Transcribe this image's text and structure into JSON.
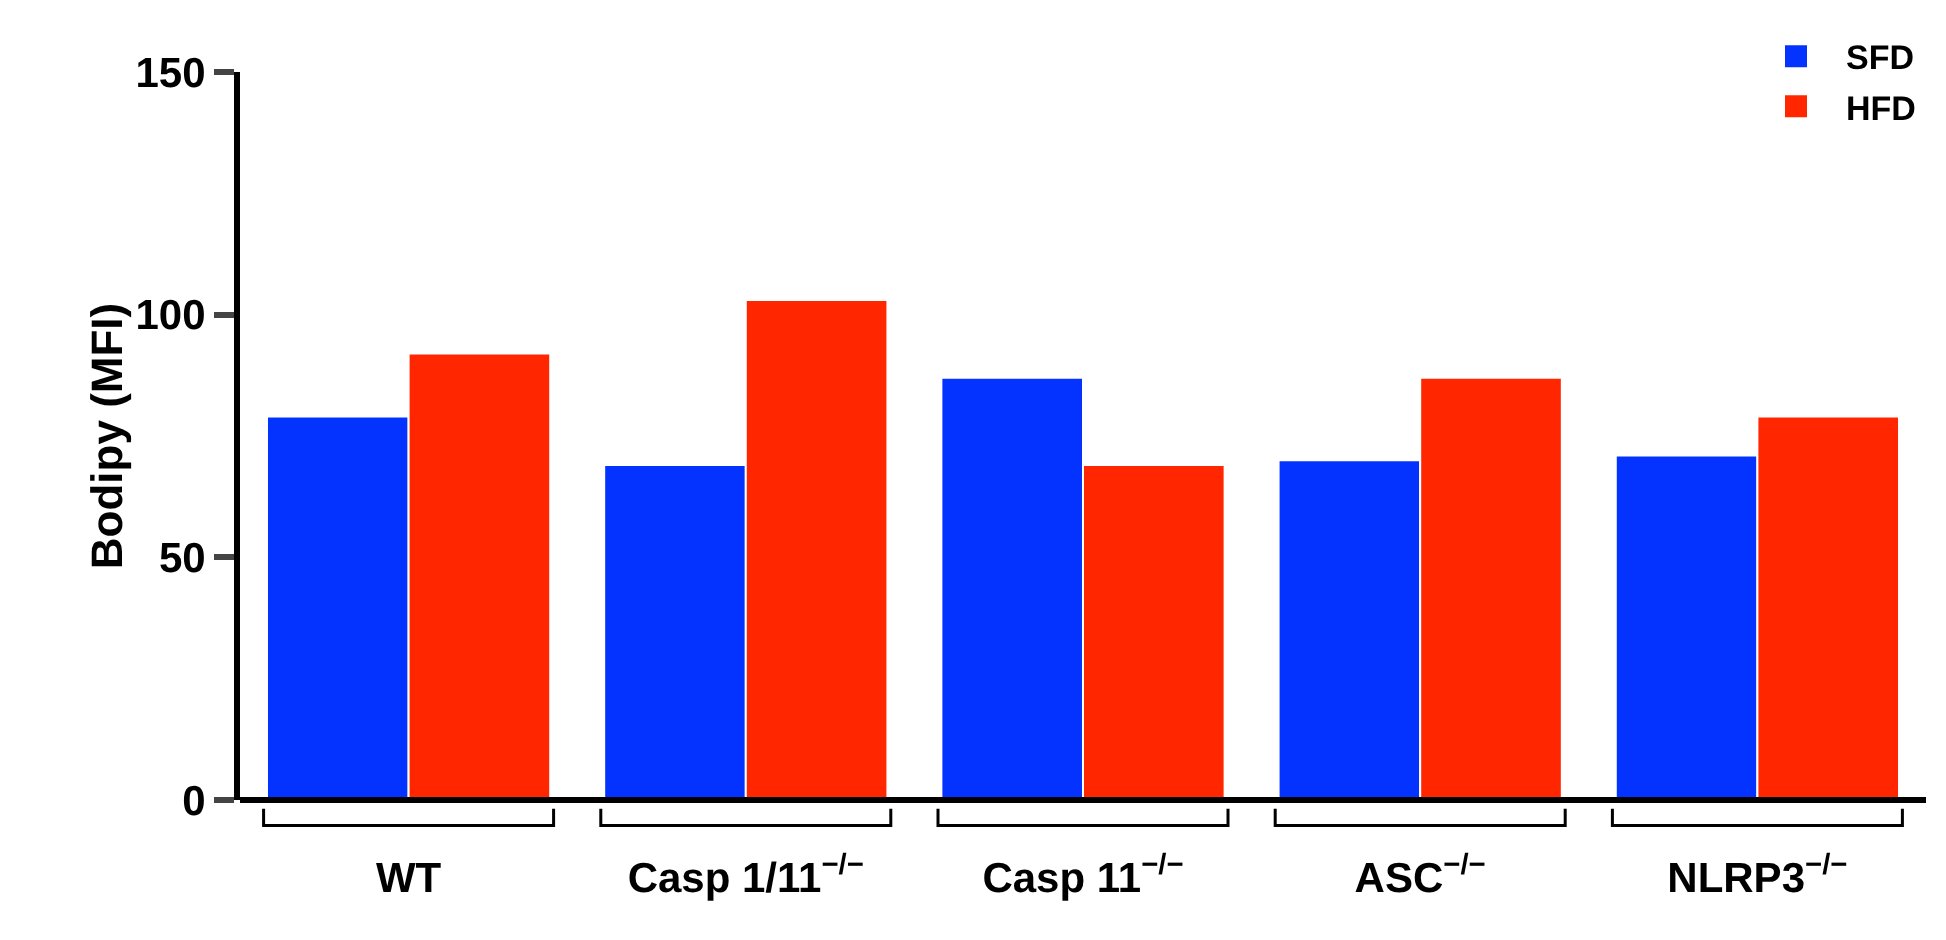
{
  "chart_data": {
    "type": "bar",
    "ylabel": "Bodipy (MFI)",
    "categories": [
      "WT",
      "Casp 1/11$^{−/−}$",
      "Casp 11$^{−/−}$",
      "ASC$^{−/−}$",
      "NLRP3$^{−/−}$"
    ],
    "series": [
      {
        "name": "SFD",
        "color": "#0433ff",
        "values": [
          79,
          69,
          87,
          70,
          71
        ]
      },
      {
        "name": "HFD",
        "color": "#ff2600",
        "values": [
          92,
          103,
          69,
          87,
          79
        ]
      }
    ],
    "ylim": [
      0,
      150
    ],
    "yticks": [
      0,
      50,
      100,
      150
    ],
    "grid": false,
    "legend": "top right"
  }
}
